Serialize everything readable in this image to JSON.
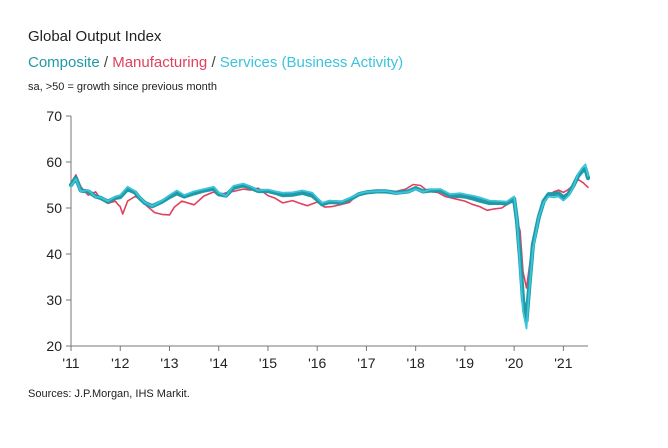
{
  "title": "Global Output Index",
  "subtitle": {
    "composite": "Composite",
    "sep1": " / ",
    "manufacturing": "Manufacturing",
    "sep2": " / ",
    "services": "Services (Business Activity)"
  },
  "note": "sa, >50 = growth since previous month",
  "source": "Sources: J.P.Morgan, IHS Markit.",
  "colors": {
    "composite": "#1f9aa6",
    "manufacturing": "#e0405e",
    "services": "#3cc4dc",
    "axis": "#777777"
  },
  "chart_data": {
    "type": "line",
    "ylim": [
      20,
      70
    ],
    "xlim": [
      2011,
      2021.5
    ],
    "yticks": [
      20,
      30,
      40,
      50,
      60,
      70
    ],
    "xticks": [
      {
        "value": 2011,
        "label": "'11"
      },
      {
        "value": 2012,
        "label": "'12"
      },
      {
        "value": 2013,
        "label": "'13"
      },
      {
        "value": 2014,
        "label": "'14"
      },
      {
        "value": 2015,
        "label": "'15"
      },
      {
        "value": 2016,
        "label": "'16"
      },
      {
        "value": 2017,
        "label": "'17"
      },
      {
        "value": 2018,
        "label": "'18"
      },
      {
        "value": 2019,
        "label": "'19"
      },
      {
        "value": 2020,
        "label": "'20"
      },
      {
        "value": 2021,
        "label": "'21"
      }
    ],
    "series": [
      {
        "name": "Manufacturing",
        "points": [
          [
            2011.0,
            55.5
          ],
          [
            2011.1,
            57.2
          ],
          [
            2011.2,
            54.6
          ],
          [
            2011.35,
            52.8
          ],
          [
            2011.5,
            53.5
          ],
          [
            2011.6,
            52.0
          ],
          [
            2011.75,
            51.0
          ],
          [
            2011.9,
            51.5
          ],
          [
            2011.95,
            50.8
          ],
          [
            2012.0,
            50.3
          ],
          [
            2012.05,
            48.7
          ],
          [
            2012.15,
            51.5
          ],
          [
            2012.3,
            52.5
          ],
          [
            2012.4,
            52.0
          ],
          [
            2012.5,
            50.8
          ],
          [
            2012.7,
            49.0
          ],
          [
            2012.85,
            48.6
          ],
          [
            2013.0,
            48.5
          ],
          [
            2013.1,
            50.2
          ],
          [
            2013.25,
            51.5
          ],
          [
            2013.5,
            50.7
          ],
          [
            2013.7,
            52.6
          ],
          [
            2013.9,
            53.5
          ],
          [
            2014.0,
            52.7
          ],
          [
            2014.15,
            53.3
          ],
          [
            2014.3,
            53.6
          ],
          [
            2014.5,
            54.1
          ],
          [
            2014.65,
            53.9
          ],
          [
            2014.8,
            54.3
          ],
          [
            2015.0,
            52.7
          ],
          [
            2015.15,
            52.1
          ],
          [
            2015.3,
            51.1
          ],
          [
            2015.5,
            51.6
          ],
          [
            2015.65,
            51.0
          ],
          [
            2015.8,
            50.5
          ],
          [
            2016.0,
            51.3
          ],
          [
            2016.15,
            50.2
          ],
          [
            2016.3,
            50.3
          ],
          [
            2016.5,
            50.8
          ],
          [
            2016.65,
            51.2
          ],
          [
            2016.8,
            52.7
          ],
          [
            2017.0,
            53.2
          ],
          [
            2017.2,
            53.6
          ],
          [
            2017.4,
            53.3
          ],
          [
            2017.6,
            53.6
          ],
          [
            2017.8,
            54.1
          ],
          [
            2017.95,
            55.1
          ],
          [
            2018.1,
            54.9
          ],
          [
            2018.25,
            53.6
          ],
          [
            2018.45,
            53.4
          ],
          [
            2018.6,
            52.5
          ],
          [
            2018.8,
            52.0
          ],
          [
            2019.0,
            51.5
          ],
          [
            2019.15,
            50.8
          ],
          [
            2019.3,
            50.3
          ],
          [
            2019.45,
            49.5
          ],
          [
            2019.6,
            49.8
          ],
          [
            2019.75,
            50.0
          ],
          [
            2019.9,
            51.1
          ],
          [
            2020.0,
            51.3
          ],
          [
            2020.06,
            47.2
          ],
          [
            2020.12,
            45.0
          ],
          [
            2020.18,
            36.2
          ],
          [
            2020.25,
            32.6
          ],
          [
            2020.32,
            38.0
          ],
          [
            2020.4,
            44.0
          ],
          [
            2020.5,
            48.0
          ],
          [
            2020.6,
            51.0
          ],
          [
            2020.7,
            52.5
          ],
          [
            2020.8,
            53.5
          ],
          [
            2020.9,
            53.9
          ],
          [
            2021.0,
            53.4
          ],
          [
            2021.1,
            54.0
          ],
          [
            2021.2,
            55.0
          ],
          [
            2021.3,
            56.2
          ],
          [
            2021.4,
            55.5
          ],
          [
            2021.5,
            54.5
          ]
        ]
      },
      {
        "name": "Composite",
        "points": [
          [
            2011.0,
            55.0
          ],
          [
            2011.1,
            56.5
          ],
          [
            2011.2,
            53.8
          ],
          [
            2011.35,
            53.6
          ],
          [
            2011.5,
            52.5
          ],
          [
            2011.6,
            52.2
          ],
          [
            2011.75,
            51.4
          ],
          [
            2011.9,
            52.2
          ],
          [
            2012.0,
            52.4
          ],
          [
            2012.15,
            54.1
          ],
          [
            2012.3,
            53.4
          ],
          [
            2012.4,
            52.1
          ],
          [
            2012.5,
            51.1
          ],
          [
            2012.65,
            50.4
          ],
          [
            2012.85,
            51.4
          ],
          [
            2013.0,
            52.4
          ],
          [
            2013.15,
            53.2
          ],
          [
            2013.3,
            52.5
          ],
          [
            2013.5,
            53.2
          ],
          [
            2013.7,
            53.8
          ],
          [
            2013.9,
            54.2
          ],
          [
            2014.0,
            53.0
          ],
          [
            2014.15,
            52.7
          ],
          [
            2014.3,
            54.4
          ],
          [
            2014.5,
            54.9
          ],
          [
            2014.65,
            54.4
          ],
          [
            2014.8,
            53.7
          ],
          [
            2015.0,
            53.7
          ],
          [
            2015.15,
            53.3
          ],
          [
            2015.3,
            52.8
          ],
          [
            2015.5,
            52.9
          ],
          [
            2015.7,
            53.3
          ],
          [
            2015.9,
            52.7
          ],
          [
            2016.0,
            51.8
          ],
          [
            2016.1,
            50.8
          ],
          [
            2016.25,
            51.3
          ],
          [
            2016.5,
            51.2
          ],
          [
            2016.7,
            52.1
          ],
          [
            2016.85,
            53.0
          ],
          [
            2017.0,
            53.4
          ],
          [
            2017.2,
            53.6
          ],
          [
            2017.4,
            53.6
          ],
          [
            2017.6,
            53.3
          ],
          [
            2017.85,
            53.6
          ],
          [
            2018.0,
            54.3
          ],
          [
            2018.15,
            53.6
          ],
          [
            2018.3,
            53.8
          ],
          [
            2018.5,
            53.8
          ],
          [
            2018.7,
            52.7
          ],
          [
            2018.9,
            52.6
          ],
          [
            2019.0,
            52.5
          ],
          [
            2019.15,
            52.1
          ],
          [
            2019.3,
            51.6
          ],
          [
            2019.5,
            51.1
          ],
          [
            2019.7,
            51.1
          ],
          [
            2019.85,
            51.0
          ],
          [
            2020.0,
            52.0
          ],
          [
            2020.06,
            47.0
          ],
          [
            2020.12,
            39.0
          ],
          [
            2020.18,
            30.0
          ],
          [
            2020.25,
            25.5
          ],
          [
            2020.3,
            32.0
          ],
          [
            2020.38,
            42.0
          ],
          [
            2020.5,
            48.0
          ],
          [
            2020.6,
            51.5
          ],
          [
            2020.7,
            53.0
          ],
          [
            2020.8,
            53.0
          ],
          [
            2020.9,
            53.2
          ],
          [
            2021.0,
            52.3
          ],
          [
            2021.1,
            53.0
          ],
          [
            2021.2,
            54.8
          ],
          [
            2021.3,
            57.0
          ],
          [
            2021.38,
            58.0
          ],
          [
            2021.45,
            58.5
          ],
          [
            2021.5,
            56.5
          ]
        ]
      },
      {
        "name": "Services",
        "points": [
          [
            2011.0,
            54.8
          ],
          [
            2011.1,
            56.3
          ],
          [
            2011.2,
            53.6
          ],
          [
            2011.35,
            53.9
          ],
          [
            2011.5,
            52.4
          ],
          [
            2011.6,
            52.3
          ],
          [
            2011.75,
            51.5
          ],
          [
            2011.9,
            52.5
          ],
          [
            2012.0,
            52.8
          ],
          [
            2012.15,
            54.6
          ],
          [
            2012.3,
            53.7
          ],
          [
            2012.4,
            52.3
          ],
          [
            2012.5,
            51.2
          ],
          [
            2012.65,
            50.4
          ],
          [
            2012.85,
            51.6
          ],
          [
            2013.0,
            52.8
          ],
          [
            2013.15,
            53.8
          ],
          [
            2013.3,
            52.8
          ],
          [
            2013.5,
            53.6
          ],
          [
            2013.7,
            54.1
          ],
          [
            2013.9,
            54.6
          ],
          [
            2014.0,
            53.3
          ],
          [
            2014.15,
            52.6
          ],
          [
            2014.3,
            54.8
          ],
          [
            2014.5,
            55.3
          ],
          [
            2014.65,
            54.7
          ],
          [
            2014.8,
            53.8
          ],
          [
            2015.0,
            54.0
          ],
          [
            2015.15,
            53.6
          ],
          [
            2015.3,
            53.3
          ],
          [
            2015.5,
            53.4
          ],
          [
            2015.7,
            53.8
          ],
          [
            2015.9,
            53.3
          ],
          [
            2016.0,
            52.2
          ],
          [
            2016.1,
            51.1
          ],
          [
            2016.25,
            51.6
          ],
          [
            2016.5,
            51.4
          ],
          [
            2016.7,
            52.4
          ],
          [
            2016.85,
            53.1
          ],
          [
            2017.0,
            53.5
          ],
          [
            2017.2,
            53.6
          ],
          [
            2017.4,
            53.7
          ],
          [
            2017.6,
            53.2
          ],
          [
            2017.85,
            53.5
          ],
          [
            2018.0,
            54.1
          ],
          [
            2018.15,
            53.5
          ],
          [
            2018.3,
            54.0
          ],
          [
            2018.5,
            54.1
          ],
          [
            2018.7,
            53.0
          ],
          [
            2018.9,
            53.2
          ],
          [
            2019.0,
            53.0
          ],
          [
            2019.15,
            52.7
          ],
          [
            2019.3,
            52.3
          ],
          [
            2019.5,
            51.6
          ],
          [
            2019.7,
            51.5
          ],
          [
            2019.85,
            51.4
          ],
          [
            2020.0,
            52.5
          ],
          [
            2020.06,
            47.0
          ],
          [
            2020.12,
            37.0
          ],
          [
            2020.18,
            27.5
          ],
          [
            2020.25,
            23.8
          ],
          [
            2020.3,
            31.0
          ],
          [
            2020.38,
            41.0
          ],
          [
            2020.5,
            48.0
          ],
          [
            2020.6,
            51.2
          ],
          [
            2020.7,
            52.5
          ],
          [
            2020.8,
            52.3
          ],
          [
            2020.9,
            52.5
          ],
          [
            2021.0,
            51.6
          ],
          [
            2021.1,
            52.6
          ],
          [
            2021.2,
            54.5
          ],
          [
            2021.3,
            57.5
          ],
          [
            2021.38,
            58.7
          ],
          [
            2021.45,
            59.5
          ],
          [
            2021.5,
            57.0
          ]
        ]
      }
    ]
  }
}
